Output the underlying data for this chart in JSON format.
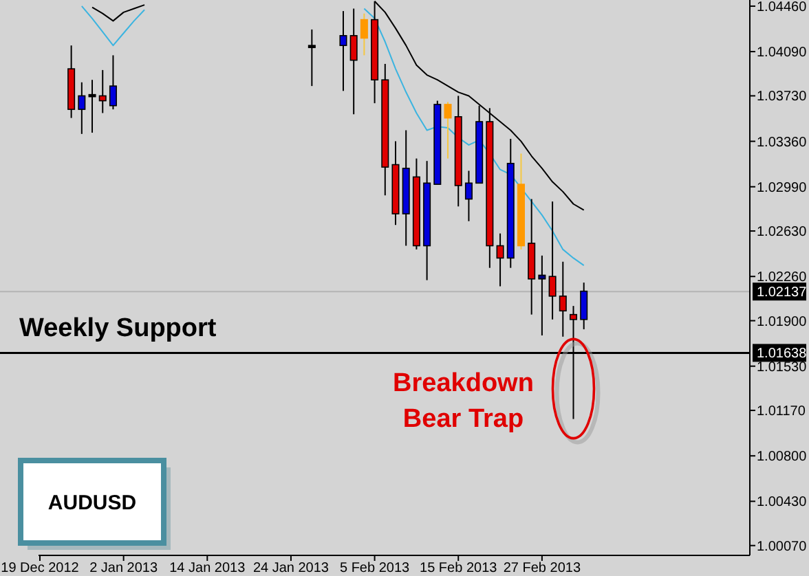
{
  "chart_data": {
    "type": "candlestick",
    "title": "AUDUSD",
    "categories": [
      "19 Dec 2012",
      null,
      null,
      null,
      null,
      null,
      null,
      null,
      "2 Jan 2013",
      null,
      null,
      null,
      null,
      null,
      null,
      null,
      "14 Jan 2013",
      null,
      null,
      null,
      null,
      null,
      null,
      null,
      "24 Jan 2013",
      null,
      null,
      null,
      null,
      null,
      null,
      null,
      "5 Feb 2013",
      null,
      null,
      null,
      null,
      null,
      null,
      null,
      "15 Feb 2013",
      null,
      null,
      null,
      null,
      null,
      null,
      null,
      "27 Feb 2013",
      null,
      null,
      null,
      null,
      null,
      null,
      null,
      null,
      null,
      null,
      null,
      null,
      null,
      null,
      null,
      null,
      null,
      null,
      null
    ],
    "ohlc": [
      null,
      null,
      null,
      [
        1.0395,
        1.0414,
        1.0355,
        1.0362
      ],
      [
        1.0362,
        1.0384,
        1.0342,
        1.0373
      ],
      [
        1.0374,
        1.0386,
        1.0343,
        1.0374
      ],
      [
        1.0373,
        1.0394,
        1.0359,
        1.0369
      ],
      [
        1.0365,
        1.0406,
        1.0362,
        1.0381
      ],
      null,
      null,
      null,
      null,
      null,
      null,
      null,
      null,
      null,
      null,
      null,
      null,
      null,
      null,
      null,
      null,
      null,
      null,
      [
        1.0414,
        1.0427,
        1.0381,
        1.0414
      ],
      null,
      null,
      [
        1.0414,
        1.0442,
        1.0377,
        1.0422
      ],
      [
        1.0422,
        1.0444,
        1.0358,
        1.0402
      ],
      [
        1.0435,
        1.044,
        1.0406,
        1.042
      ],
      [
        1.0435,
        1.045,
        1.0367,
        1.0386
      ],
      [
        1.0386,
        1.0399,
        1.0292,
        1.0315
      ],
      [
        1.0317,
        1.0336,
        1.0268,
        1.0277
      ],
      [
        1.0277,
        1.0345,
        1.0251,
        1.0314
      ],
      [
        1.0307,
        1.0322,
        1.0248,
        1.0251
      ],
      [
        1.0251,
        1.032,
        1.0223,
        1.0302
      ],
      [
        1.0301,
        1.0369,
        1.0301,
        1.0366
      ],
      [
        1.0366,
        1.0368,
        1.0322,
        1.0355
      ],
      [
        1.0356,
        1.0373,
        1.0283,
        1.03
      ],
      [
        1.0289,
        1.0312,
        1.0271,
        1.0302
      ],
      [
        1.0302,
        1.0365,
        1.0302,
        1.0352
      ],
      [
        1.0352,
        1.0363,
        1.0233,
        1.0251
      ],
      [
        1.0251,
        1.0261,
        1.0218,
        1.0241
      ],
      [
        1.0241,
        1.0338,
        1.0233,
        1.0318
      ],
      [
        1.0301,
        1.0326,
        1.0248,
        1.0251
      ],
      [
        1.0253,
        1.0289,
        1.0195,
        1.0224
      ],
      [
        1.0224,
        1.0243,
        1.0178,
        1.0227
      ],
      [
        1.0226,
        1.0287,
        1.0191,
        1.021
      ],
      [
        1.021,
        1.0238,
        1.0177,
        1.0198
      ],
      [
        1.0195,
        1.0202,
        1.011,
        1.0191
      ],
      [
        1.0191,
        1.0221,
        1.0183,
        1.0214
      ],
      null,
      null,
      null,
      null,
      null,
      null,
      null,
      null,
      null,
      null,
      null,
      null,
      null,
      null,
      null
    ],
    "colors": [
      null,
      null,
      null,
      "#e00000",
      "#0000dd",
      "#000000",
      "#e00000",
      "#0000dd",
      null,
      null,
      null,
      null,
      null,
      null,
      null,
      null,
      null,
      null,
      null,
      null,
      null,
      null,
      null,
      null,
      null,
      null,
      "#000000",
      null,
      null,
      "#0000dd",
      "#e00000",
      "#ff9900",
      "#e00000",
      "#e00000",
      "#e00000",
      "#0000dd",
      "#e00000",
      "#0000dd",
      "#0000dd",
      "#ff9900",
      "#e00000",
      "#0000dd",
      "#0000dd",
      "#e00000",
      "#e00000",
      "#0000dd",
      "#ff9900",
      "#e00000",
      "#000080",
      "#e00000",
      "#e00000",
      "#e00000",
      "#0000dd",
      null,
      null,
      null,
      null,
      null,
      null,
      null,
      null,
      null,
      null,
      null,
      null,
      null,
      null,
      null
    ],
    "series": [
      {
        "type": "line",
        "color": "#3bb4e0",
        "values": [
          null,
          null,
          null,
          null,
          1.0446,
          1.0436,
          1.0425,
          1.0414,
          1.0424,
          1.0434,
          1.0443,
          null,
          null,
          null,
          null,
          null,
          null,
          null,
          null,
          null,
          null,
          null,
          null,
          null,
          null,
          null,
          null,
          null,
          null,
          null,
          null,
          1.0444,
          1.0436,
          1.0417,
          1.0395,
          1.0376,
          1.0359,
          1.0345,
          1.0348,
          1.0347,
          1.0339,
          1.0333,
          1.0337,
          1.0326,
          1.0313,
          1.0309,
          1.0298,
          1.0287,
          1.0276,
          1.0263,
          1.0248,
          1.0241,
          1.0235,
          null,
          null,
          null,
          null,
          null,
          null,
          null,
          null,
          null,
          null,
          null,
          null,
          null,
          null,
          null
        ]
      },
      {
        "type": "line",
        "color": "#000000",
        "values": [
          null,
          null,
          null,
          null,
          null,
          1.0445,
          1.044,
          1.0434,
          1.0441,
          1.0444,
          1.0447,
          null,
          null,
          null,
          null,
          null,
          null,
          null,
          null,
          null,
          null,
          null,
          null,
          null,
          null,
          null,
          null,
          null,
          null,
          null,
          null,
          null,
          1.045,
          1.0441,
          1.0428,
          1.0414,
          1.0398,
          1.039,
          1.0386,
          1.0381,
          1.0376,
          1.0373,
          1.0366,
          1.0359,
          1.0352,
          1.0345,
          1.0336,
          1.0324,
          1.0314,
          1.0303,
          1.0295,
          1.0285,
          1.028,
          null,
          null,
          null,
          null,
          null,
          null,
          null,
          null,
          null,
          null,
          null,
          null,
          null,
          null,
          null
        ]
      }
    ],
    "ylim": [
      0.9999,
      1.0451
    ],
    "yticks": [
      {
        "value": 1.0007,
        "label": "1.00070"
      },
      {
        "value": 1.0043,
        "label": "1.00430"
      },
      {
        "value": 1.008,
        "label": "1.00800"
      },
      {
        "value": 1.0117,
        "label": "1.01170"
      },
      {
        "value": 1.0153,
        "label": "1.01530"
      },
      {
        "value": 1.019,
        "label": "1.01900"
      },
      {
        "value": 1.0226,
        "label": "1.02260"
      },
      {
        "value": 1.0263,
        "label": "1.02630"
      },
      {
        "value": 1.0299,
        "label": "1.02990"
      },
      {
        "value": 1.0336,
        "label": "1.03360"
      },
      {
        "value": 1.0373,
        "label": "1.03730"
      },
      {
        "value": 1.0409,
        "label": "1.04090"
      },
      {
        "value": 1.0446,
        "label": "1.04460"
      }
    ],
    "ref_lines": [
      {
        "axis": "y",
        "value": 1.02137,
        "label": "1.02137",
        "color": "#b4b4b4"
      },
      {
        "axis": "y",
        "value": 1.01638,
        "label": "1.01638",
        "color": "#000000"
      }
    ],
    "annotations": [
      "Weekly Support",
      "Breakdown Bear Trap"
    ]
  }
}
